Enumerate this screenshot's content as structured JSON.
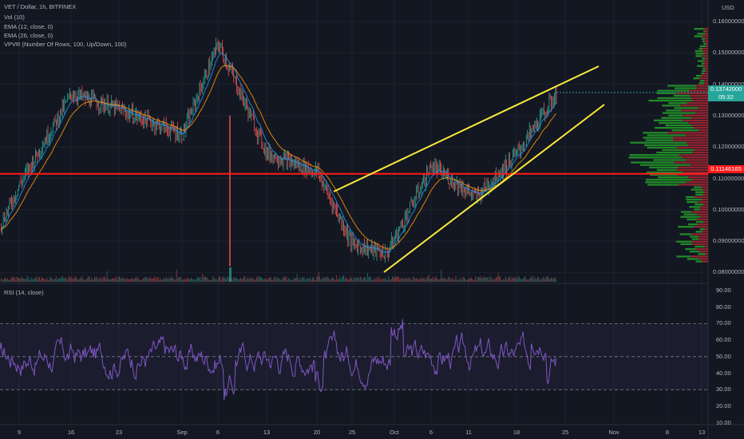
{
  "header": {
    "title": "VET / Dollar, 1h, BITFINEX",
    "indicators": [
      "Vol (10)",
      "EMA (12, close, 0)",
      "EMA (26, close, 0)",
      "VPVR (Number Of Rows, 100, Up/Down, 100)"
    ]
  },
  "price_axis": {
    "currency": "USD",
    "labels": [
      "0.16000000",
      "0.15000000",
      "0.14000000",
      "0.13000000",
      "0.12000000",
      "0.11000000",
      "0.10000000",
      "0.09000000",
      "0.08000000"
    ],
    "last_price": "0.13742000",
    "countdown": "05:32",
    "support_price": "0.11146165"
  },
  "rsi": {
    "title": "RSI (14, close)",
    "labels": [
      "90.00",
      "80.00",
      "70.00",
      "60.00",
      "50.00",
      "40.00",
      "30.00",
      "20.00",
      "10.00"
    ]
  },
  "time_axis": {
    "labels": [
      "9",
      "16",
      "23",
      "Sep",
      "6",
      "13",
      "20",
      "25",
      "Oct",
      "6",
      "11",
      "18",
      "25",
      "Nov",
      "8",
      "13"
    ]
  },
  "colors": {
    "background": "#131722",
    "up": "#26a69a",
    "down": "#ef5350",
    "trendline": "#ffeb3b",
    "support": "#ff1a1a",
    "rsi": "#7e57c2",
    "ema": "#2196f3",
    "vp_up": "#26a62a",
    "vp_down": "#b22833"
  },
  "chart_data": {
    "type": "candlestick",
    "price_anchors": [
      {
        "x": "9",
        "y": 0.108
      },
      {
        "x": "16",
        "y": 0.137
      },
      {
        "x": "23",
        "y": 0.132
      },
      {
        "x": "Sep",
        "y": 0.124
      },
      {
        "x": "6",
        "y": 0.153
      },
      {
        "x": "13",
        "y": 0.118
      },
      {
        "x": "20",
        "y": 0.112
      },
      {
        "x": "25",
        "y": 0.089
      },
      {
        "x": "Oct",
        "y": 0.086
      },
      {
        "x": "6",
        "y": 0.114
      },
      {
        "x": "11",
        "y": 0.104
      },
      {
        "x": "18",
        "y": 0.118
      },
      {
        "x": "25",
        "y": 0.137
      }
    ],
    "horizontal_level": 0.11146165,
    "rsi_bands": [
      70,
      50,
      30
    ],
    "ylim": [
      0.078,
      0.162
    ]
  }
}
